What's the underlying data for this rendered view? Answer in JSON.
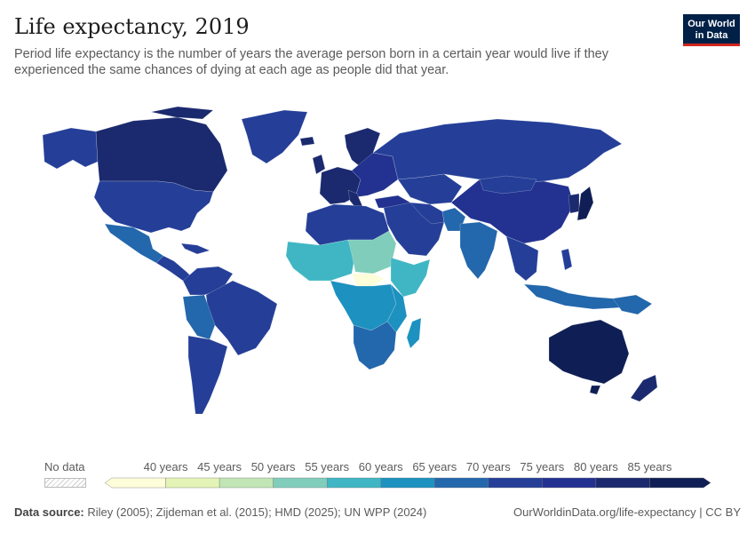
{
  "header": {
    "title": "Life expectancy, 2019",
    "subtitle": "Period life expectancy is the number of years the average person born in a certain year would live if they experienced the same chances of dying at each age as people did that year."
  },
  "logo": {
    "line1": "Our World",
    "line2": "in Data"
  },
  "legend": {
    "no_data_label": "No data",
    "ticks": [
      "40 years",
      "45 years",
      "50 years",
      "55 years",
      "60 years",
      "65 years",
      "70 years",
      "75 years",
      "80 years",
      "85 years"
    ],
    "bins": [
      {
        "from": null,
        "to": 40,
        "color": "#fdfdd9"
      },
      {
        "from": 40,
        "to": 45,
        "color": "#e3f4b6"
      },
      {
        "from": 45,
        "to": 50,
        "color": "#c1e5b5"
      },
      {
        "from": 50,
        "to": 55,
        "color": "#80cdbb"
      },
      {
        "from": 55,
        "to": 60,
        "color": "#40b6c4"
      },
      {
        "from": 60,
        "to": 65,
        "color": "#1d91c0"
      },
      {
        "from": 65,
        "to": 70,
        "color": "#2367ac"
      },
      {
        "from": 70,
        "to": 75,
        "color": "#253f98"
      },
      {
        "from": 75,
        "to": 80,
        "color": "#233290"
      },
      {
        "from": 80,
        "to": 85,
        "color": "#1b2a6e"
      },
      {
        "from": 85,
        "to": null,
        "color": "#0f1f55"
      }
    ]
  },
  "footer": {
    "source_label": "Data source:",
    "source_text": "Riley (2005); Zijdeman et al. (2015); HMD (2025); UN WPP (2024)",
    "link_text": "OurWorldinData.org/life-expectancy | CC BY"
  }
}
